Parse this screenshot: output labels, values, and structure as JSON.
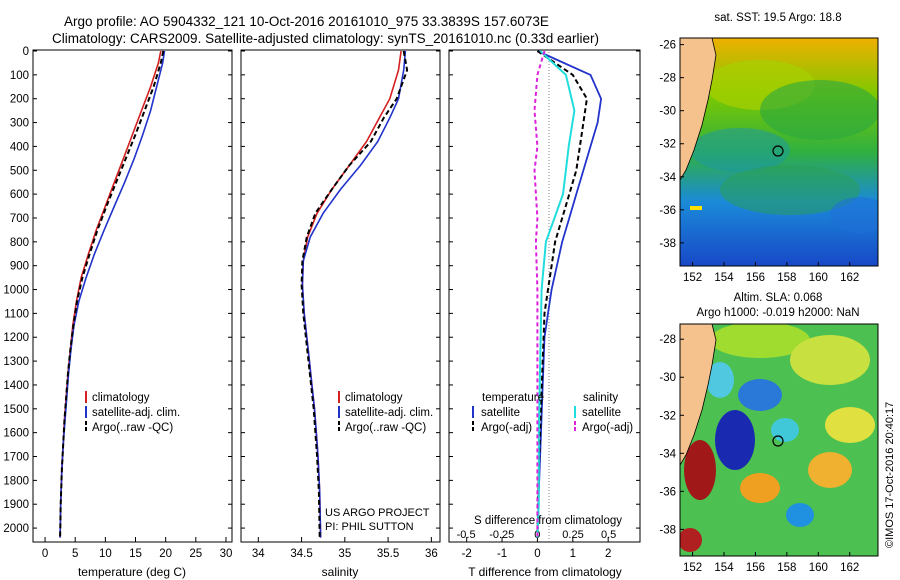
{
  "header": {
    "line1": "Argo profile: AO 5904332_121 10-Oct-2016 20161010_975 33.3839S 157.6073E",
    "line2": "Climatology: CARS2009. Satellite-adjusted climatology: synTS_20161010.nc (0.33d earlier)"
  },
  "depth_ticks": [
    "0",
    "100",
    "200",
    "300",
    "400",
    "500",
    "600",
    "700",
    "800",
    "900",
    "1000",
    "1100",
    "1200",
    "1300",
    "1400",
    "1500",
    "1600",
    "1700",
    "1800",
    "1900",
    "2000"
  ],
  "temp_panel": {
    "xlabel": "temperature (deg C)",
    "xticks": [
      "0",
      "5",
      "10",
      "15",
      "20",
      "25",
      "30"
    ],
    "legend": [
      "climatology",
      "satellite-adj. clim.",
      "Argo(..raw -QC)"
    ]
  },
  "sal_panel": {
    "xlabel": "salinity",
    "xticks": [
      "34",
      "34.5",
      "35",
      "35.5",
      "36"
    ],
    "legend": [
      "climatology",
      "satellite-adj. clim.",
      "Argo(..raw -QC)"
    ],
    "note1": "US ARGO PROJECT",
    "note2": "PI: PHIL SUTTON"
  },
  "diff_panel": {
    "xlabel": "T difference from climatology",
    "xticks": [
      "-2",
      "-1",
      "0",
      "1",
      "2"
    ],
    "top_label": "S difference from climatology",
    "s_ticks": [
      "-0.5",
      "-0.25",
      "0",
      "0.25",
      "0.5"
    ],
    "legend_temp_head": "temperature",
    "legend_sal_head": "salinity",
    "legend_temp": [
      "satellite",
      "Argo(-adj)"
    ],
    "legend_sal": [
      "satellite",
      "Argo(-adj)"
    ]
  },
  "map_sst": {
    "title": "sat. SST: 19.5  Argo: 18.8",
    "yticks": [
      "-26",
      "-28",
      "-30",
      "-32",
      "-34",
      "-36",
      "-38"
    ],
    "xticks": [
      "152",
      "154",
      "156",
      "158",
      "160",
      "162"
    ]
  },
  "map_sla": {
    "title1": "Altim. SLA: 0.068",
    "title2": "Argo h1000: -0.019 h2000: NaN",
    "yticks": [
      "-28",
      "-30",
      "-32",
      "-34",
      "-36",
      "-38"
    ],
    "xticks": [
      "152",
      "154",
      "156",
      "158",
      "160",
      "162"
    ]
  },
  "credit": "©IMOS 17-Oct-2016 20:40:17",
  "colors": {
    "climatology": "#d42020",
    "satellite": "#2233cc",
    "argo": "#000000",
    "sal_sat": "#22dddd",
    "sal_argo": "#dd22dd"
  },
  "chart_data": [
    {
      "type": "line",
      "xlabel": "temperature (deg C)",
      "ylabel": "",
      "xlim": [
        -2,
        31
      ],
      "ylim": [
        2050,
        0
      ],
      "series": [
        {
          "name": "climatology",
          "x": [
            19.2,
            18.8,
            17.5,
            16.0,
            14.5,
            13.0,
            11.5,
            10.0,
            8.5,
            7.2,
            6.0,
            5.2,
            4.6,
            4.2,
            3.8,
            3.5,
            3.2,
            3.0,
            2.8,
            2.6,
            2.5
          ],
          "y": [
            0,
            50,
            150,
            250,
            350,
            450,
            550,
            650,
            750,
            850,
            950,
            1050,
            1150,
            1250,
            1350,
            1450,
            1550,
            1650,
            1750,
            1900,
            2040
          ]
        },
        {
          "name": "satellite-adj. clim.",
          "x": [
            19.8,
            19.5,
            18.5,
            17.5,
            16.2,
            14.8,
            13.2,
            11.5,
            9.8,
            8.2,
            6.8,
            5.6,
            4.8,
            4.3,
            3.9,
            3.6,
            3.3,
            3.0,
            2.8,
            2.6,
            2.5
          ],
          "y": [
            0,
            50,
            150,
            250,
            350,
            450,
            550,
            650,
            750,
            850,
            950,
            1050,
            1150,
            1250,
            1350,
            1450,
            1550,
            1650,
            1750,
            1900,
            2040
          ]
        },
        {
          "name": "Argo(..raw -QC)",
          "x": [
            19.6,
            19.2,
            18.0,
            16.5,
            15.0,
            13.4,
            11.8,
            10.2,
            8.7,
            7.4,
            6.2,
            5.3,
            4.7,
            4.2,
            3.8,
            3.5,
            3.2,
            3.0,
            2.8,
            2.6,
            2.5
          ],
          "y": [
            0,
            50,
            150,
            250,
            350,
            450,
            550,
            650,
            750,
            850,
            950,
            1050,
            1150,
            1250,
            1350,
            1450,
            1550,
            1650,
            1750,
            1900,
            2040
          ]
        }
      ]
    },
    {
      "type": "line",
      "xlabel": "salinity",
      "ylabel": "",
      "xlim": [
        33.8,
        36.1
      ],
      "ylim": [
        2050,
        0
      ],
      "series": [
        {
          "name": "climatology",
          "x": [
            35.65,
            35.62,
            35.52,
            35.4,
            35.25,
            35.05,
            34.85,
            34.68,
            34.57,
            34.52,
            34.51,
            34.53,
            34.56,
            34.59,
            34.62,
            34.65,
            34.67,
            34.69,
            34.71,
            34.72
          ],
          "y": [
            0,
            80,
            200,
            280,
            380,
            480,
            580,
            680,
            780,
            880,
            980,
            1100,
            1200,
            1300,
            1400,
            1500,
            1600,
            1700,
            1850,
            2040
          ]
        },
        {
          "name": "satellite-adj. clim.",
          "x": [
            35.7,
            35.68,
            35.62,
            35.52,
            35.38,
            35.18,
            34.95,
            34.75,
            34.6,
            34.52,
            34.51,
            34.53,
            34.56,
            34.59,
            34.62,
            34.65,
            34.67,
            34.69,
            34.71,
            34.72
          ],
          "y": [
            0,
            80,
            200,
            280,
            380,
            480,
            580,
            680,
            780,
            880,
            980,
            1100,
            1200,
            1300,
            1400,
            1500,
            1600,
            1700,
            1850,
            2040
          ]
        },
        {
          "name": "Argo(..raw -QC)",
          "x": [
            35.68,
            35.72,
            35.6,
            35.45,
            35.3,
            35.05,
            34.85,
            34.66,
            34.56,
            34.51,
            34.5,
            34.52,
            34.55,
            34.58,
            34.61,
            34.64,
            34.66,
            34.68,
            34.7,
            34.71
          ],
          "y": [
            0,
            80,
            200,
            280,
            380,
            480,
            580,
            680,
            780,
            880,
            980,
            1100,
            1200,
            1300,
            1400,
            1500,
            1600,
            1700,
            1850,
            2040
          ]
        }
      ]
    },
    {
      "type": "line",
      "xlabel": "T difference from climatology",
      "ylabel": "",
      "xlim": [
        -2.5,
        2.9
      ],
      "ylim": [
        2050,
        0
      ],
      "series": [
        {
          "name": "satellite",
          "x": [
            0.0,
            1.5,
            1.8,
            1.7,
            1.5,
            1.3,
            1.1,
            0.9,
            0.7,
            0.55,
            0.4,
            0.3,
            0.2,
            0.15,
            0.1,
            0.05,
            0.02,
            0.0
          ],
          "y": [
            0,
            100,
            200,
            300,
            400,
            500,
            600,
            700,
            800,
            900,
            1000,
            1100,
            1200,
            1400,
            1600,
            1800,
            1950,
            2040
          ]
        },
        {
          "name": "Argo(-adj)",
          "x": [
            0.0,
            1.0,
            1.4,
            1.3,
            1.2,
            1.1,
            0.9,
            0.7,
            0.5,
            0.4,
            0.3,
            0.2,
            0.15,
            0.1,
            0.05,
            0.02,
            0.0
          ],
          "y": [
            0,
            100,
            200,
            300,
            400,
            500,
            600,
            700,
            800,
            900,
            1000,
            1100,
            1300,
            1500,
            1700,
            1900,
            2040
          ]
        }
      ]
    },
    {
      "type": "line",
      "xlabel": "S difference from climatology",
      "ylabel": "",
      "xlim": [
        -0.62,
        0.72
      ],
      "ylim": [
        2050,
        0
      ],
      "series": [
        {
          "name": "satellite",
          "x": [
            0.02,
            0.2,
            0.26,
            0.22,
            0.2,
            0.18,
            0.12,
            0.06,
            0.03,
            0.02,
            0.01,
            0.01,
            0.0
          ],
          "y": [
            0,
            100,
            250,
            400,
            500,
            600,
            700,
            800,
            1000,
            1300,
            1600,
            1900,
            2040
          ]
        },
        {
          "name": "Argo(-adj)",
          "x": [
            0.05,
            0.0,
            -0.02,
            0.0,
            -0.02,
            -0.01,
            0.0,
            -0.01,
            0.0,
            0.0,
            0.0,
            0.0
          ],
          "y": [
            0,
            100,
            250,
            400,
            500,
            600,
            700,
            800,
            1000,
            1400,
            1800,
            2040
          ]
        }
      ]
    }
  ]
}
